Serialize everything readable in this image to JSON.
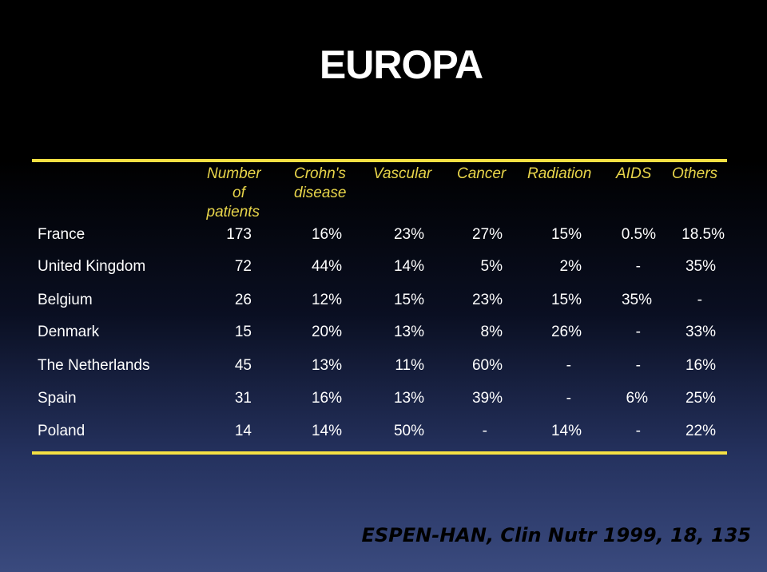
{
  "title": "EUROPA",
  "headers": {
    "patients_line1": "Number",
    "patients_line2": "of",
    "patients_line3": "patients",
    "crohns_line1": "Crohn's",
    "crohns_line2": "disease",
    "vascular": "Vascular",
    "cancer": "Cancer",
    "radiation": "Radiation",
    "aids": "AIDS",
    "others": "Others"
  },
  "rows": [
    {
      "country": "France",
      "patients": "173",
      "crohns": "16%",
      "vascular": "23%",
      "cancer": "27%",
      "radiation": "15%",
      "aids": "0.5%",
      "others": "18.5%"
    },
    {
      "country": "United Kingdom",
      "patients": "72",
      "crohns": "44%",
      "vascular": "14%",
      "cancer": "5%",
      "radiation": "2%",
      "aids": "-",
      "others": "35%"
    },
    {
      "country": "Belgium",
      "patients": "26",
      "crohns": "12%",
      "vascular": "15%",
      "cancer": "23%",
      "radiation": "15%",
      "aids": "35%",
      "others": "-"
    },
    {
      "country": "Denmark",
      "patients": "15",
      "crohns": "20%",
      "vascular": "13%",
      "cancer": "8%",
      "radiation": "26%",
      "aids": "-",
      "others": "33%"
    },
    {
      "country": "The Netherlands",
      "patients": "45",
      "crohns": "13%",
      "vascular": "11%",
      "cancer": "60%",
      "radiation": "-",
      "aids": "-",
      "others": "16%"
    },
    {
      "country": "Spain",
      "patients": "31",
      "crohns": "16%",
      "vascular": "13%",
      "cancer": "39%",
      "radiation": "-",
      "aids": "6%",
      "others": "25%"
    },
    {
      "country": "Poland",
      "patients": "14",
      "crohns": "14%",
      "vascular": "50%",
      "cancer": "-",
      "radiation": "14%",
      "aids": "-",
      "others": "22%"
    }
  ],
  "citation": "ESPEN-HAN, Clin Nutr 1999, 18, 135",
  "colors": {
    "rule": "#f5e043",
    "header": "#e8d54a",
    "text": "#ffffff"
  }
}
